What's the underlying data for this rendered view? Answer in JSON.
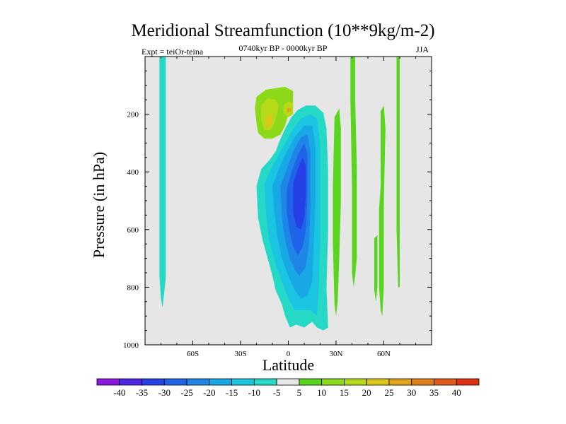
{
  "chart_data": {
    "type": "contour",
    "title": "Meridional Streamfunction (10**9kg/m-2)",
    "left_annotation": "Expt = teiOr-teina",
    "center_annotation": "0740kyr BP - 0000kyr BP",
    "right_annotation": "JJA",
    "xlabel": "Latitude",
    "ylabel": "Pressure (in hPa)",
    "xlim": [
      -90,
      90
    ],
    "ylim": [
      1000,
      0
    ],
    "x_ticks": [
      {
        "value": -60,
        "label": "60S"
      },
      {
        "value": -30,
        "label": "30S"
      },
      {
        "value": 0,
        "label": "0"
      },
      {
        "value": 30,
        "label": "30N"
      },
      {
        "value": 60,
        "label": "60N"
      }
    ],
    "y_ticks": [
      {
        "value": 200,
        "label": "200"
      },
      {
        "value": 400,
        "label": "400"
      },
      {
        "value": 600,
        "label": "600"
      },
      {
        "value": 800,
        "label": "800"
      },
      {
        "value": 1000,
        "label": "1000"
      }
    ],
    "background_color": "#e6e6e6",
    "colorbar": {
      "levels": [
        "-40",
        "-35",
        "-30",
        "-25",
        "-20",
        "-15",
        "-10",
        "-5",
        "5",
        "10",
        "15",
        "20",
        "25",
        "30",
        "35",
        "40"
      ],
      "colors": [
        "#8a17e0",
        "#4d26e6",
        "#2440e6",
        "#1f63e8",
        "#1f86e8",
        "#19a8e6",
        "#19c5e0",
        "#26d9c7",
        "#e6e6e6",
        "#59d41f",
        "#8cd91a",
        "#b6d91a",
        "#dec51a",
        "#e0a41a",
        "#e0801a",
        "#e05a1a",
        "#e03112"
      ]
    },
    "regions": [
      {
        "name": "cell-80s-weak-negative",
        "color": "#26d9c7",
        "points": [
          [
            -80,
            0
          ],
          [
            -77,
            0
          ],
          [
            -77,
            770
          ],
          [
            -78,
            820
          ],
          [
            -79,
            870
          ],
          [
            -80,
            840
          ],
          [
            -81,
            760
          ],
          [
            -81,
            0
          ]
        ]
      },
      {
        "name": "cell-15s-positive-outer",
        "color": "#8cd91a",
        "points": [
          [
            -20,
            140
          ],
          [
            -14,
            115
          ],
          [
            -8,
            110
          ],
          [
            -2,
            105
          ],
          [
            3,
            120
          ],
          [
            3,
            160
          ],
          [
            1,
            180
          ],
          [
            -2,
            240
          ],
          [
            -5,
            270
          ],
          [
            -10,
            285
          ],
          [
            -15,
            285
          ],
          [
            -19,
            265
          ],
          [
            -20,
            230
          ],
          [
            -21,
            180
          ]
        ]
      },
      {
        "name": "cell-15s-positive-middle",
        "color": "#b6d91a",
        "points": [
          [
            -17,
            170
          ],
          [
            -13,
            145
          ],
          [
            -8,
            150
          ],
          [
            -6,
            170
          ],
          [
            -8,
            220
          ],
          [
            -11,
            255
          ],
          [
            -15,
            255
          ],
          [
            -17,
            220
          ]
        ]
      },
      {
        "name": "cell-15s-positive-core",
        "color": "#dec51a",
        "points": [
          [
            -14,
            210
          ],
          [
            -11,
            200
          ],
          [
            -10,
            230
          ],
          [
            -12,
            250
          ],
          [
            -14,
            240
          ]
        ]
      },
      {
        "name": "cell-0-positive-middle",
        "color": "#b6d91a",
        "points": [
          [
            -3,
            170
          ],
          [
            0,
            155
          ],
          [
            3,
            160
          ],
          [
            3,
            200
          ],
          [
            0,
            210
          ],
          [
            -3,
            195
          ]
        ]
      },
      {
        "name": "cell-0-positive-core",
        "color": "#e0a41a",
        "points": [
          [
            -1,
            180
          ],
          [
            1,
            178
          ],
          [
            2,
            188
          ],
          [
            0,
            195
          ],
          [
            -1,
            190
          ]
        ]
      },
      {
        "name": "cell-eq-negative-5",
        "color": "#26d9c7",
        "points": [
          [
            -20,
            450
          ],
          [
            -17,
            390
          ],
          [
            -12,
            360
          ],
          [
            -8,
            330
          ],
          [
            -6,
            300
          ],
          [
            -2,
            250
          ],
          [
            2,
            210
          ],
          [
            6,
            185
          ],
          [
            11,
            170
          ],
          [
            17,
            170
          ],
          [
            22,
            195
          ],
          [
            24,
            250
          ],
          [
            25,
            400
          ],
          [
            25,
            600
          ],
          [
            24,
            800
          ],
          [
            25,
            940
          ],
          [
            22,
            950
          ],
          [
            18,
            940
          ],
          [
            15,
            920
          ],
          [
            10,
            940
          ],
          [
            5,
            930
          ],
          [
            1,
            940
          ],
          [
            -2,
            900
          ],
          [
            -4,
            860
          ],
          [
            -8,
            810
          ],
          [
            -10,
            760
          ],
          [
            -13,
            700
          ],
          [
            -16,
            640
          ],
          [
            -19,
            560
          ]
        ]
      },
      {
        "name": "cell-eq-negative-10",
        "color": "#19c5e0",
        "points": [
          [
            -15,
            440
          ],
          [
            -10,
            380
          ],
          [
            -4,
            320
          ],
          [
            2,
            260
          ],
          [
            8,
            215
          ],
          [
            14,
            200
          ],
          [
            18,
            215
          ],
          [
            20,
            300
          ],
          [
            20,
            500
          ],
          [
            20,
            650
          ],
          [
            19,
            820
          ],
          [
            18,
            900
          ],
          [
            14,
            880
          ],
          [
            9,
            880
          ],
          [
            4,
            880
          ],
          [
            0,
            840
          ],
          [
            -4,
            780
          ],
          [
            -8,
            720
          ],
          [
            -12,
            640
          ],
          [
            -14,
            540
          ]
        ]
      },
      {
        "name": "cell-eq-negative-15",
        "color": "#19a8e6",
        "points": [
          [
            -10,
            450
          ],
          [
            -6,
            390
          ],
          [
            -1,
            330
          ],
          [
            4,
            280
          ],
          [
            10,
            240
          ],
          [
            15,
            240
          ],
          [
            17,
            310
          ],
          [
            17,
            500
          ],
          [
            16,
            650
          ],
          [
            15,
            780
          ],
          [
            12,
            830
          ],
          [
            8,
            840
          ],
          [
            4,
            810
          ],
          [
            0,
            760
          ],
          [
            -4,
            700
          ],
          [
            -7,
            620
          ],
          [
            -9,
            530
          ]
        ]
      },
      {
        "name": "cell-eq-negative-20",
        "color": "#1f86e8",
        "points": [
          [
            -5,
            450
          ],
          [
            -1,
            390
          ],
          [
            3,
            330
          ],
          [
            8,
            280
          ],
          [
            12,
            270
          ],
          [
            14,
            330
          ],
          [
            14,
            500
          ],
          [
            13,
            650
          ],
          [
            11,
            730
          ],
          [
            7,
            760
          ],
          [
            4,
            740
          ],
          [
            1,
            700
          ],
          [
            -2,
            640
          ],
          [
            -4,
            560
          ]
        ]
      },
      {
        "name": "cell-eq-negative-25",
        "color": "#1f63e8",
        "points": [
          [
            -1,
            460
          ],
          [
            2,
            400
          ],
          [
            6,
            340
          ],
          [
            10,
            300
          ],
          [
            12,
            340
          ],
          [
            12,
            480
          ],
          [
            11,
            600
          ],
          [
            9,
            660
          ],
          [
            6,
            690
          ],
          [
            3,
            660
          ],
          [
            1,
            610
          ],
          [
            -1,
            540
          ]
        ]
      },
      {
        "name": "cell-eq-negative-30",
        "color": "#2440e6",
        "points": [
          [
            3,
            440
          ],
          [
            6,
            390
          ],
          [
            9,
            350
          ],
          [
            11,
            380
          ],
          [
            11,
            480
          ],
          [
            10,
            560
          ],
          [
            8,
            600
          ],
          [
            5,
            590
          ],
          [
            3,
            540
          ]
        ]
      },
      {
        "name": "cell-40n-positive",
        "color": "#59d41f",
        "points": [
          [
            39,
            0
          ],
          [
            42,
            0
          ],
          [
            42,
            150
          ],
          [
            43,
            380
          ],
          [
            43,
            700
          ],
          [
            42,
            760
          ],
          [
            41,
            800
          ],
          [
            40,
            750
          ],
          [
            40,
            450
          ],
          [
            39,
            150
          ]
        ]
      },
      {
        "name": "cell-30n-positive",
        "color": "#59d41f",
        "points": [
          [
            29,
            210
          ],
          [
            32,
            180
          ],
          [
            33,
            250
          ],
          [
            33,
            500
          ],
          [
            32,
            700
          ],
          [
            31,
            850
          ],
          [
            30,
            900
          ],
          [
            29,
            860
          ],
          [
            28,
            650
          ],
          [
            28,
            450
          ]
        ]
      },
      {
        "name": "cell-60n-positive",
        "color": "#59d41f",
        "points": [
          [
            58,
            190
          ],
          [
            60,
            170
          ],
          [
            61,
            250
          ],
          [
            60,
            500
          ],
          [
            60,
            800
          ],
          [
            59,
            900
          ],
          [
            58,
            880
          ],
          [
            57,
            800
          ],
          [
            57,
            530
          ],
          [
            58,
            450
          ]
        ]
      },
      {
        "name": "cell-55n-positive",
        "color": "#59d41f",
        "points": [
          [
            54,
            630
          ],
          [
            56,
            620
          ],
          [
            56,
            800
          ],
          [
            55,
            850
          ],
          [
            54,
            810
          ]
        ]
      },
      {
        "name": "cell-70n-positive",
        "color": "#59d41f",
        "points": [
          [
            68,
            0
          ],
          [
            70,
            0
          ],
          [
            70,
            600
          ],
          [
            70,
            800
          ],
          [
            69,
            800
          ],
          [
            68,
            600
          ]
        ]
      }
    ]
  }
}
